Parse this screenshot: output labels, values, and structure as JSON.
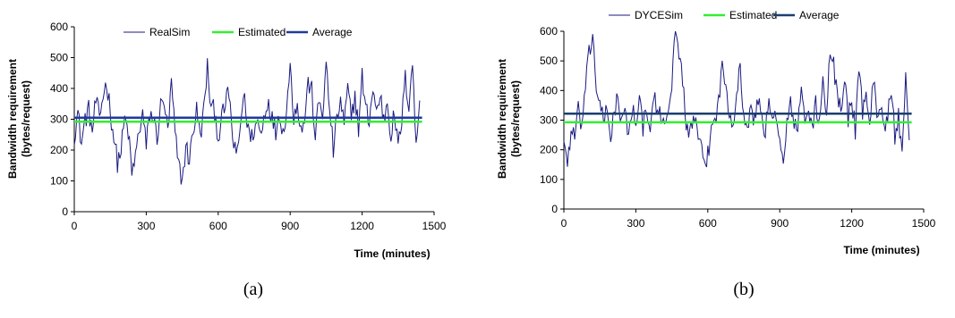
{
  "colors": {
    "raw_series": "#1a1a80",
    "estimated": "#33ee33",
    "average_a": "#1f3a9a",
    "average_b": "#1b3f6e",
    "axis": "#000000"
  },
  "chart_data": [
    {
      "type": "line",
      "panel_caption": "(a)",
      "xlabel": "Time (minutes)",
      "ylabel": "Bandwidth requirement\n(bytes/request)",
      "ylabel_lines": [
        "Bandwidth requirement",
        "(bytes/request)"
      ],
      "xlim": [
        0,
        1500
      ],
      "ylim": [
        0,
        600
      ],
      "xticks": [
        0,
        300,
        600,
        900,
        1200,
        1500
      ],
      "yticks": [
        0,
        100,
        200,
        300,
        400,
        500,
        600
      ],
      "grid": false,
      "legend_position": "top",
      "series": [
        {
          "name": "RealSim",
          "style": "raw",
          "x_range": [
            0,
            1440
          ],
          "x_step": 5,
          "anchors": [
            [
              0,
              250
            ],
            [
              15,
              320
            ],
            [
              30,
              220
            ],
            [
              45,
              300
            ],
            [
              60,
              330
            ],
            [
              75,
              260
            ],
            [
              90,
              360
            ],
            [
              105,
              300
            ],
            [
              120,
              380
            ],
            [
              135,
              420
            ],
            [
              150,
              330
            ],
            [
              165,
              240
            ],
            [
              180,
              160
            ],
            [
              195,
              200
            ],
            [
              210,
              300
            ],
            [
              225,
              260
            ],
            [
              240,
              120
            ],
            [
              255,
              180
            ],
            [
              270,
              260
            ],
            [
              285,
              320
            ],
            [
              300,
              210
            ],
            [
              315,
              320
            ],
            [
              330,
              300
            ],
            [
              345,
              240
            ],
            [
              360,
              340
            ],
            [
              375,
              360
            ],
            [
              390,
              250
            ],
            [
              405,
              420
            ],
            [
              420,
              250
            ],
            [
              435,
              150
            ],
            [
              450,
              100
            ],
            [
              465,
              210
            ],
            [
              480,
              170
            ],
            [
              495,
              260
            ],
            [
              510,
              330
            ],
            [
              525,
              240
            ],
            [
              540,
              330
            ],
            [
              555,
              470
            ],
            [
              570,
              330
            ],
            [
              585,
              330
            ],
            [
              600,
              240
            ],
            [
              615,
              300
            ],
            [
              630,
              350
            ],
            [
              645,
              390
            ],
            [
              660,
              240
            ],
            [
              675,
              170
            ],
            [
              690,
              260
            ],
            [
              705,
              380
            ],
            [
              720,
              300
            ],
            [
              735,
              230
            ],
            [
              750,
              270
            ],
            [
              765,
              290
            ],
            [
              780,
              250
            ],
            [
              795,
              330
            ],
            [
              810,
              360
            ],
            [
              825,
              300
            ],
            [
              840,
              260
            ],
            [
              855,
              330
            ],
            [
              870,
              250
            ],
            [
              885,
              340
            ],
            [
              900,
              470
            ],
            [
              915,
              310
            ],
            [
              930,
              360
            ],
            [
              945,
              260
            ],
            [
              960,
              300
            ],
            [
              975,
              420
            ],
            [
              990,
              390
            ],
            [
              1005,
              240
            ],
            [
              1020,
              360
            ],
            [
              1035,
              320
            ],
            [
              1050,
              470
            ],
            [
              1065,
              330
            ],
            [
              1080,
              200
            ],
            [
              1095,
              300
            ],
            [
              1110,
              360
            ],
            [
              1125,
              280
            ],
            [
              1140,
              400
            ],
            [
              1155,
              300
            ],
            [
              1170,
              380
            ],
            [
              1185,
              270
            ],
            [
              1200,
              440
            ],
            [
              1215,
              330
            ],
            [
              1230,
              300
            ],
            [
              1245,
              400
            ],
            [
              1260,
              320
            ],
            [
              1275,
              380
            ],
            [
              1290,
              300
            ],
            [
              1305,
              360
            ],
            [
              1320,
              250
            ],
            [
              1335,
              320
            ],
            [
              1350,
              200
            ],
            [
              1365,
              300
            ],
            [
              1380,
              430
            ],
            [
              1395,
              350
            ],
            [
              1410,
              490
            ],
            [
              1425,
              200
            ],
            [
              1440,
              370
            ]
          ]
        },
        {
          "name": "Estimated",
          "style": "flat",
          "value": 292,
          "x_range": [
            0,
            1450
          ]
        },
        {
          "name": "Average",
          "style": "flat",
          "value": 305,
          "x_range": [
            0,
            1450
          ]
        }
      ]
    },
    {
      "type": "line",
      "panel_caption": "(b)",
      "xlabel": "Time (minutes)",
      "ylabel": "Bandwidth requirement\n(bytes/request)",
      "ylabel_lines": [
        "Bandwidth requirement",
        "(bytes/request)"
      ],
      "xlim": [
        0,
        1500
      ],
      "ylim": [
        0,
        600
      ],
      "xticks": [
        0,
        300,
        600,
        900,
        1200,
        1500
      ],
      "yticks": [
        0,
        100,
        200,
        300,
        400,
        500,
        600
      ],
      "grid": false,
      "legend_position": "top",
      "series": [
        {
          "name": "DYCESim",
          "style": "raw",
          "x_range": [
            0,
            1440
          ],
          "x_step": 5,
          "anchors": [
            [
              0,
              240
            ],
            [
              15,
              150
            ],
            [
              30,
              270
            ],
            [
              45,
              240
            ],
            [
              60,
              330
            ],
            [
              75,
              280
            ],
            [
              90,
              410
            ],
            [
              105,
              520
            ],
            [
              120,
              590
            ],
            [
              135,
              420
            ],
            [
              150,
              340
            ],
            [
              165,
              300
            ],
            [
              180,
              330
            ],
            [
              195,
              250
            ],
            [
              210,
              330
            ],
            [
              225,
              380
            ],
            [
              240,
              280
            ],
            [
              255,
              320
            ],
            [
              270,
              260
            ],
            [
              285,
              330
            ],
            [
              300,
              310
            ],
            [
              315,
              360
            ],
            [
              330,
              280
            ],
            [
              345,
              330
            ],
            [
              360,
              250
            ],
            [
              375,
              400
            ],
            [
              390,
              300
            ],
            [
              405,
              320
            ],
            [
              420,
              290
            ],
            [
              435,
              350
            ],
            [
              450,
              420
            ],
            [
              465,
              600
            ],
            [
              480,
              540
            ],
            [
              495,
              430
            ],
            [
              510,
              300
            ],
            [
              525,
              240
            ],
            [
              540,
              320
            ],
            [
              555,
              260
            ],
            [
              570,
              200
            ],
            [
              585,
              150
            ],
            [
              600,
              180
            ],
            [
              615,
              270
            ],
            [
              630,
              310
            ],
            [
              645,
              360
            ],
            [
              660,
              480
            ],
            [
              675,
              420
            ],
            [
              690,
              330
            ],
            [
              705,
              300
            ],
            [
              720,
              390
            ],
            [
              735,
              470
            ],
            [
              750,
              320
            ],
            [
              765,
              270
            ],
            [
              780,
              330
            ],
            [
              795,
              300
            ],
            [
              810,
              370
            ],
            [
              825,
              320
            ],
            [
              840,
              260
            ],
            [
              855,
              360
            ],
            [
              870,
              280
            ],
            [
              885,
              330
            ],
            [
              900,
              250
            ],
            [
              915,
              130
            ],
            [
              930,
              290
            ],
            [
              945,
              350
            ],
            [
              960,
              300
            ],
            [
              975,
              260
            ],
            [
              990,
              410
            ],
            [
              1005,
              300
            ],
            [
              1020,
              340
            ],
            [
              1035,
              260
            ],
            [
              1050,
              360
            ],
            [
              1065,
              290
            ],
            [
              1080,
              420
            ],
            [
              1095,
              300
            ],
            [
              1110,
              540
            ],
            [
              1125,
              480
            ],
            [
              1140,
              400
            ],
            [
              1155,
              330
            ],
            [
              1170,
              450
            ],
            [
              1185,
              300
            ],
            [
              1200,
              380
            ],
            [
              1215,
              260
            ],
            [
              1230,
              480
            ],
            [
              1245,
              330
            ],
            [
              1260,
              410
            ],
            [
              1275,
              280
            ],
            [
              1290,
              430
            ],
            [
              1305,
              330
            ],
            [
              1320,
              370
            ],
            [
              1335,
              270
            ],
            [
              1350,
              320
            ],
            [
              1365,
              390
            ],
            [
              1380,
              250
            ],
            [
              1395,
              320
            ],
            [
              1410,
              160
            ],
            [
              1425,
              430
            ],
            [
              1440,
              220
            ]
          ]
        },
        {
          "name": "Estimated",
          "style": "flat",
          "value": 293,
          "x_range": [
            0,
            1450
          ]
        },
        {
          "name": "Average",
          "style": "flat",
          "value": 322,
          "x_range": [
            0,
            1450
          ]
        }
      ]
    }
  ]
}
